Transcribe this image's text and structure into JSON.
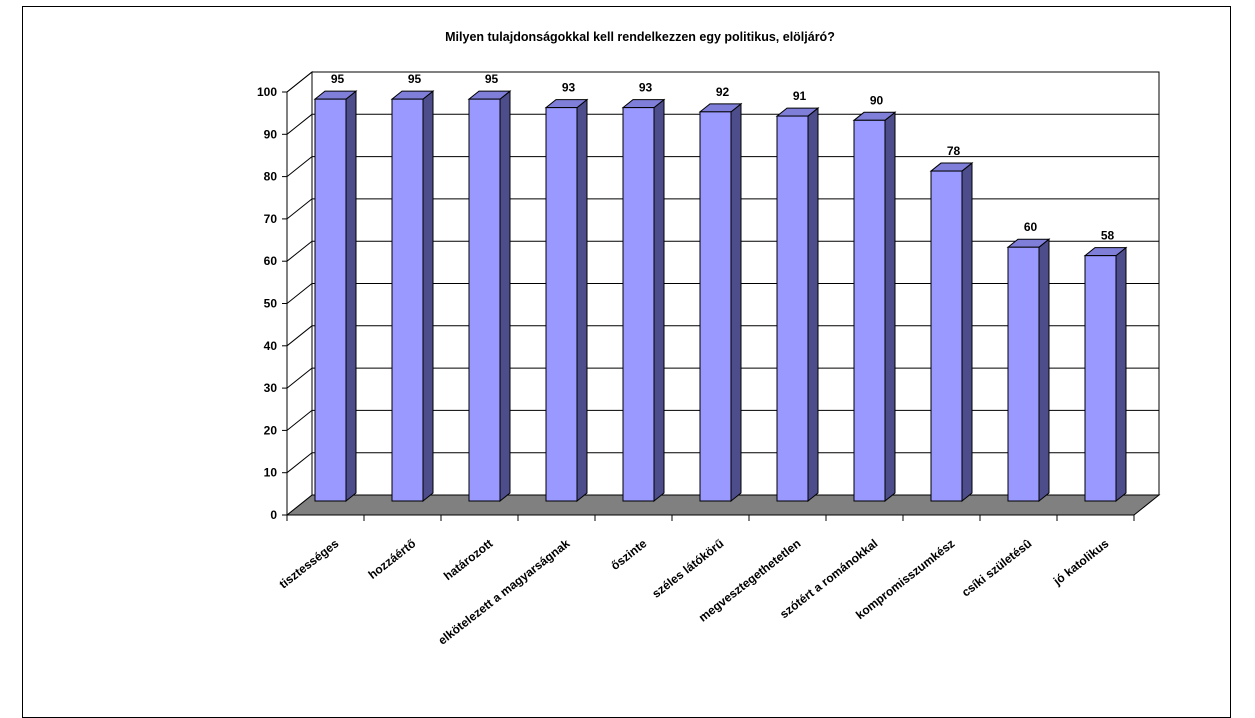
{
  "chart_data": {
    "type": "bar",
    "title": "Milyen tulajdonságokkal kell rendelkezzen egy politikus, elöljáró?",
    "categories": [
      "tisztességes",
      "hozzáértő",
      "határozott",
      "elkötelezett a magyarságnak",
      "őszinte",
      "széles látókörű",
      "megvesztegethetetlen",
      "szótért a románokkal",
      "kompromisszumkész",
      "csíki születésû",
      "jó katolikus"
    ],
    "values": [
      95,
      95,
      95,
      93,
      93,
      92,
      91,
      90,
      78,
      60,
      58
    ],
    "data_labels": [
      "95",
      "95",
      "95",
      "93",
      "93",
      "92",
      "91",
      "90",
      "78",
      "60",
      "58"
    ],
    "y_ticks": [
      "0",
      "10",
      "20",
      "30",
      "40",
      "50",
      "60",
      "70",
      "80",
      "90",
      "100"
    ],
    "ylim": [
      0,
      100
    ],
    "xlabel": "",
    "ylabel": "",
    "grid": true,
    "legend": "none",
    "style": "3d-column",
    "colors": {
      "bar_front": "#9999ff",
      "bar_top": "#7f7fd9",
      "bar_side": "#4d4d8c",
      "floor": "#808080",
      "wall": "#ffffff"
    }
  }
}
